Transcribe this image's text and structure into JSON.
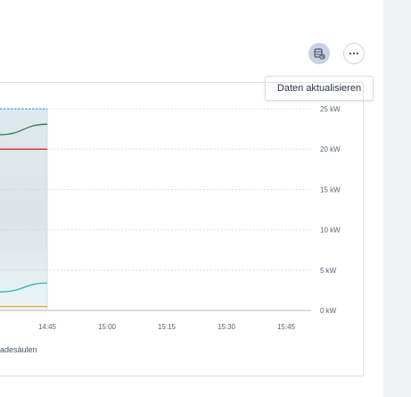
{
  "toolbar": {
    "refresh_tooltip": "Daten aktualisieren",
    "refresh_icon": "database-refresh-icon",
    "more_icon": "ellipsis-icon"
  },
  "legend": {
    "text": "adesäulen"
  },
  "chart_data": {
    "type": "line",
    "x_ticks": [
      "14:45",
      "15:00",
      "15:15",
      "15:30",
      "15:45"
    ],
    "y_ticks": [
      "0 kW",
      "5 kW",
      "10 kW",
      "15 kW",
      "20 kW",
      "25 kW"
    ],
    "ylim": [
      0,
      25
    ],
    "grid": true,
    "series": [
      {
        "color": "#3aa0e0",
        "values": [
          25,
          25
        ]
      },
      {
        "color": "#2e7d4f",
        "values": [
          21.8,
          23.1
        ]
      },
      {
        "color": "#d03030",
        "values": [
          20,
          20
        ]
      },
      {
        "color": "#2bb3b8",
        "values": [
          2.3,
          3.4
        ]
      },
      {
        "color": "#f0a020",
        "values": [
          0.5,
          0.5
        ]
      }
    ]
  }
}
